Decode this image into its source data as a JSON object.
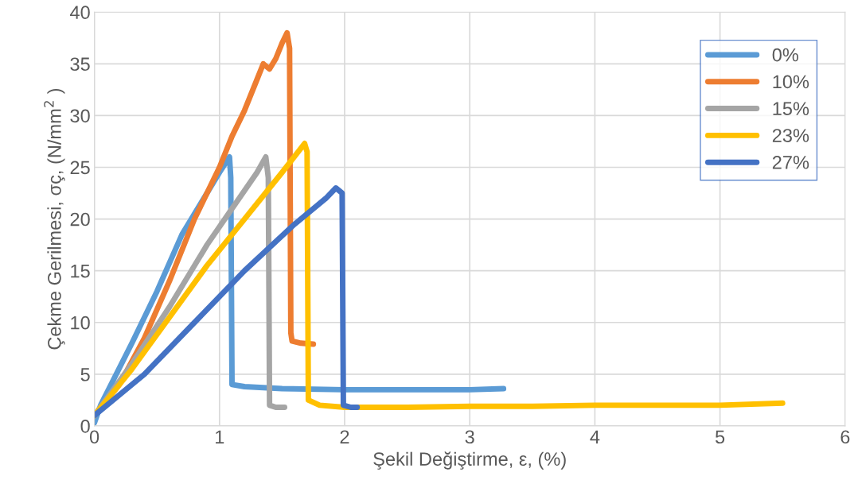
{
  "chart_data": {
    "type": "line",
    "xlabel": "Şekil Değiştirme, ε, (%)",
    "ylabel": "Çekme Gerilmesi, σç, (N/mm$^{2}$ )",
    "xlim": [
      0,
      6
    ],
    "xticks": [
      0,
      1,
      2,
      3,
      4,
      5,
      6
    ],
    "ylim": [
      0,
      40
    ],
    "yticks": [
      0,
      5,
      10,
      15,
      20,
      25,
      30,
      35,
      40
    ],
    "grid": true,
    "legend": "top right",
    "marker": "none",
    "line_style": "solid",
    "series": [
      {
        "name": "0%",
        "color": "#5b9bd5",
        "x": [
          0,
          0.05,
          0.3,
          0.5,
          0.7,
          0.9,
          1.0,
          1.08,
          1.09,
          1.1,
          1.2,
          1.5,
          2,
          2.5,
          3,
          3.27
        ],
        "values": [
          0.3,
          2,
          8,
          13,
          18.5,
          22.5,
          24.5,
          26,
          24,
          4,
          3.8,
          3.6,
          3.5,
          3.5,
          3.5,
          3.6
        ]
      },
      {
        "name": "10%",
        "color": "#ed7d31",
        "x": [
          0,
          0.2,
          0.4,
          0.6,
          0.8,
          1.0,
          1.1,
          1.2,
          1.25,
          1.3,
          1.35,
          1.4,
          1.45,
          1.5,
          1.54,
          1.56,
          1.57,
          1.58,
          1.65,
          1.75
        ],
        "values": [
          1,
          4,
          8.5,
          14,
          20,
          25,
          28,
          30.5,
          32,
          33.5,
          35,
          34.5,
          35.5,
          37,
          38,
          36.5,
          9,
          8.2,
          8,
          7.9
        ]
      },
      {
        "name": "15%",
        "color": "#a5a5a5",
        "x": [
          0,
          0.3,
          0.6,
          0.9,
          1.1,
          1.3,
          1.37,
          1.39,
          1.4,
          1.45,
          1.52
        ],
        "values": [
          1,
          6,
          11.5,
          17.5,
          21,
          24.5,
          26,
          24,
          2,
          1.8,
          1.8
        ]
      },
      {
        "name": "23%",
        "color": "#ffc000",
        "x": [
          0,
          0.3,
          0.6,
          0.9,
          1.2,
          1.5,
          1.68,
          1.7,
          1.71,
          1.8,
          2.0,
          2.5,
          3,
          3.5,
          4,
          4.5,
          5,
          5.5
        ],
        "values": [
          1,
          5.5,
          10.5,
          15.5,
          20,
          24.5,
          27.3,
          26.5,
          2.5,
          2,
          1.8,
          1.8,
          1.9,
          1.9,
          2,
          2,
          2,
          2.2
        ]
      },
      {
        "name": "27%",
        "color": "#4472c4",
        "x": [
          0,
          0.4,
          0.8,
          1.2,
          1.6,
          1.85,
          1.93,
          1.98,
          1.99,
          2.05,
          2.1
        ],
        "values": [
          1,
          5,
          10,
          15,
          19.5,
          22,
          23,
          22.5,
          2,
          1.8,
          1.8
        ]
      }
    ]
  }
}
